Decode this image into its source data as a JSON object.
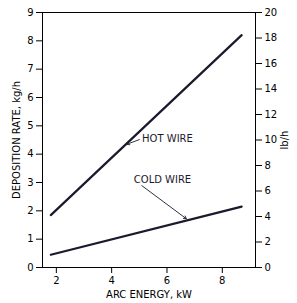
{
  "chart_data": {
    "type": "line",
    "x": [
      1.8,
      8.7
    ],
    "series": [
      {
        "values": [
          1.85,
          8.2
        ]
      },
      {
        "values": [
          0.45,
          2.15
        ]
      }
    ],
    "color": "#1a1a2e",
    "xlabel": "ARC ENERGY, kW",
    "ylabel": "DEPOSITION RATE, kg/h",
    "y2label": "lb/h",
    "xlim": [
      1.5,
      9.2
    ],
    "xticks": [
      2,
      4,
      6,
      8
    ],
    "ylim": [
      0,
      9
    ],
    "yticks": [
      0,
      1,
      2,
      3,
      4,
      5,
      6,
      7,
      8,
      9
    ],
    "y2lim": [
      0,
      20
    ],
    "y2ticks": [
      0,
      2,
      4,
      6,
      8,
      10,
      12,
      14,
      16,
      18,
      20
    ],
    "grid": false,
    "annotations": [
      {
        "text": "HOT WIRE",
        "x": 5.1,
        "y": 4.55,
        "arrow_x": 4.55,
        "arrow_y": 4.35
      },
      {
        "text": "COLD WIRE",
        "x": 4.8,
        "y": 3.1,
        "arrow_x": 6.7,
        "arrow_y": 1.72
      }
    ]
  }
}
